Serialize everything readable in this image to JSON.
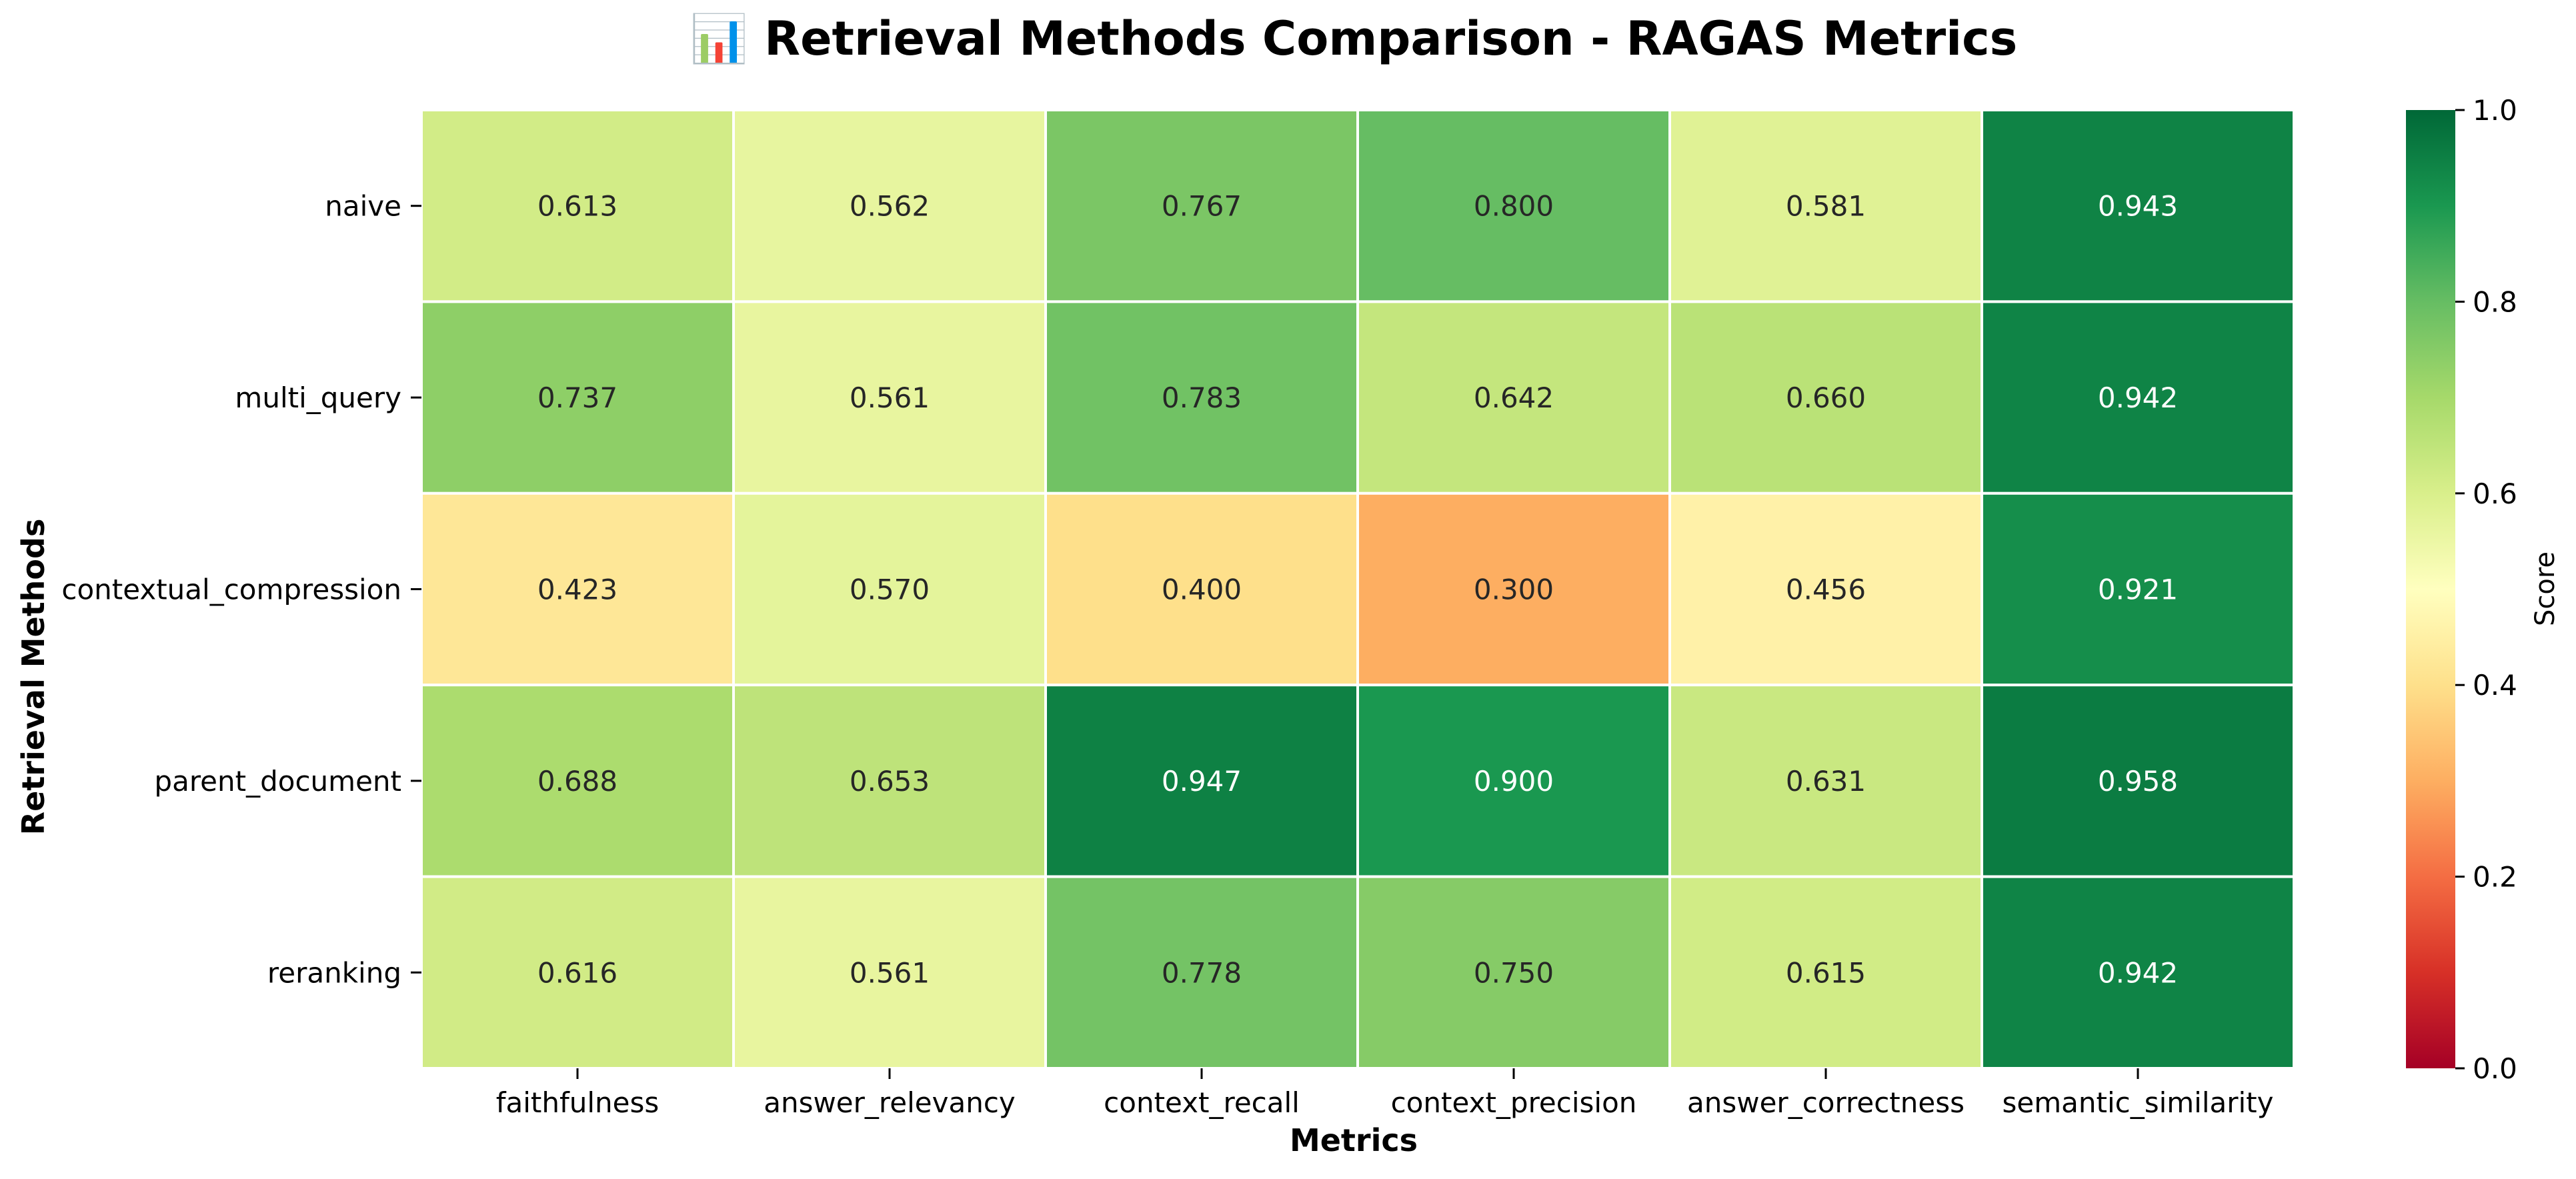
{
  "chart_data": {
    "type": "heatmap",
    "title": "📊 Retrieval Methods Comparison - RAGAS Metrics",
    "xlabel": "Metrics",
    "ylabel": "Retrieval Methods",
    "x_categories": [
      "faithfulness",
      "answer_relevancy",
      "context_recall",
      "context_precision",
      "answer_correctness",
      "semantic_similarity"
    ],
    "y_categories": [
      "naive",
      "multi_query",
      "contextual_compression",
      "parent_document",
      "reranking"
    ],
    "values": [
      [
        0.613,
        0.562,
        0.767,
        0.8,
        0.581,
        0.943
      ],
      [
        0.737,
        0.561,
        0.783,
        0.642,
        0.66,
        0.942
      ],
      [
        0.423,
        0.57,
        0.4,
        0.3,
        0.456,
        0.921
      ],
      [
        0.688,
        0.653,
        0.947,
        0.9,
        0.631,
        0.958
      ],
      [
        0.616,
        0.561,
        0.778,
        0.75,
        0.615,
        0.942
      ]
    ],
    "value_format": "0.000",
    "colormap": "RdYlGn",
    "vmin": 0.0,
    "vmax": 1.0,
    "colorbar": {
      "label": "Score",
      "ticks": [
        "0.0",
        "0.2",
        "0.4",
        "0.6",
        "0.8",
        "1.0"
      ],
      "placement": "right"
    },
    "grid": false
  }
}
